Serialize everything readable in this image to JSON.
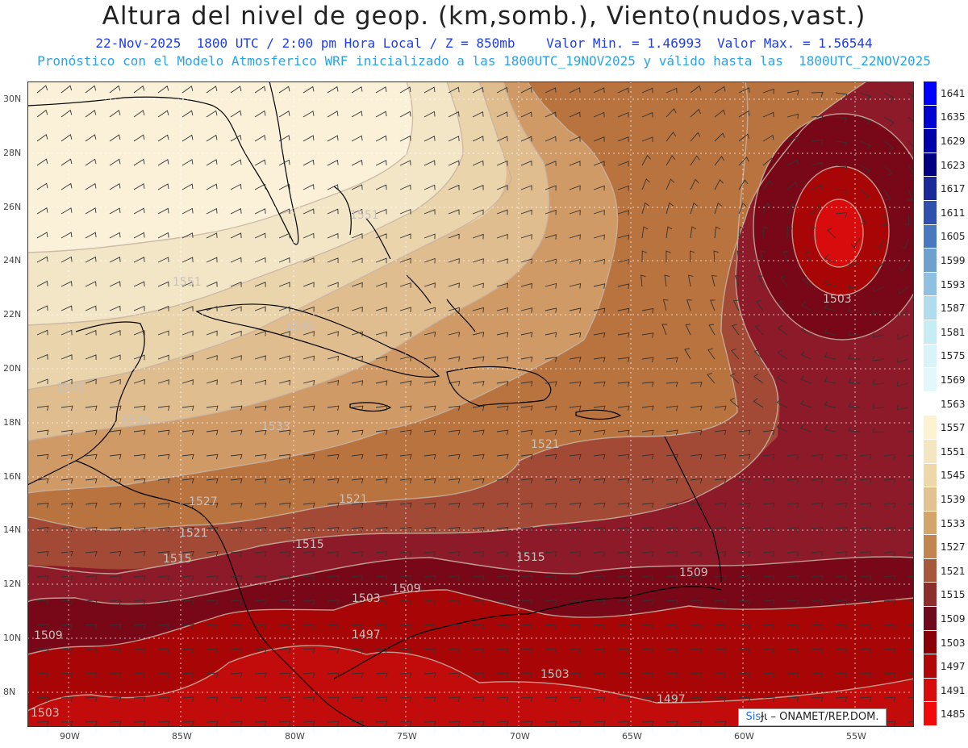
{
  "header": {
    "title": "Altura del nivel de geop. (km,somb.), Viento(nudos,vast.)",
    "subtitle": "22-Nov-2025  1800 UTC / 2:00 pm Hora Local / Z = 850mb    Valor Min. = 1.46993  Valor Max. = 1.56544",
    "description": "Pronóstico con el Modelo Atmosferico WRF inicializado a las 1800UTC_19NOV2025 y válido hasta las  1800UTC_22NOV2025"
  },
  "axes": {
    "lat_labels": [
      "30N",
      "28N",
      "26N",
      "24N",
      "22N",
      "20N",
      "18N",
      "16N",
      "14N",
      "12N",
      "10N",
      "8N"
    ],
    "lon_labels": [
      "90W",
      "85W",
      "80W",
      "75W",
      "70W",
      "65W",
      "60W",
      "55W"
    ]
  },
  "contour_labels": [
    "1551",
    "1551",
    "1545",
    "1545",
    "1539",
    "1533",
    "1527",
    "1521",
    "1521",
    "1521",
    "1515",
    "1515",
    "1515",
    "1509",
    "1509",
    "1509",
    "1503",
    "1503",
    "1503",
    "1503",
    "1497",
    "1497"
  ],
  "colorbar": {
    "labels": [
      "1641",
      "1635",
      "1629",
      "1623",
      "1617",
      "1611",
      "1605",
      "1599",
      "1593",
      "1587",
      "1581",
      "1575",
      "1569",
      "1563",
      "1557",
      "1551",
      "1545",
      "1539",
      "1533",
      "1527",
      "1521",
      "1515",
      "1509",
      "1503",
      "1497",
      "1491",
      "1485"
    ],
    "colors": [
      "#0000ff",
      "#0000d0",
      "#0000a8",
      "#000080",
      "#1a2a98",
      "#3050b0",
      "#4878c0",
      "#6ea0d0",
      "#90c0e0",
      "#b0dcee",
      "#c8ecf6",
      "#d8f4fa",
      "#e4f8fc",
      "#ffffff",
      "#fbf3d2",
      "#f4e6c0",
      "#eed8aa",
      "#e2c290",
      "#d4a46a",
      "#c28450",
      "#a8583a",
      "#8c2e2c",
      "#6e0a1c",
      "#8a0008",
      "#b00808",
      "#d80c0c",
      "#f00a0a"
    ]
  },
  "credit": {
    "sis": "Sis",
    "glyph": "Ɉι",
    "rest": "– ONAMET/REP.DOM."
  }
}
